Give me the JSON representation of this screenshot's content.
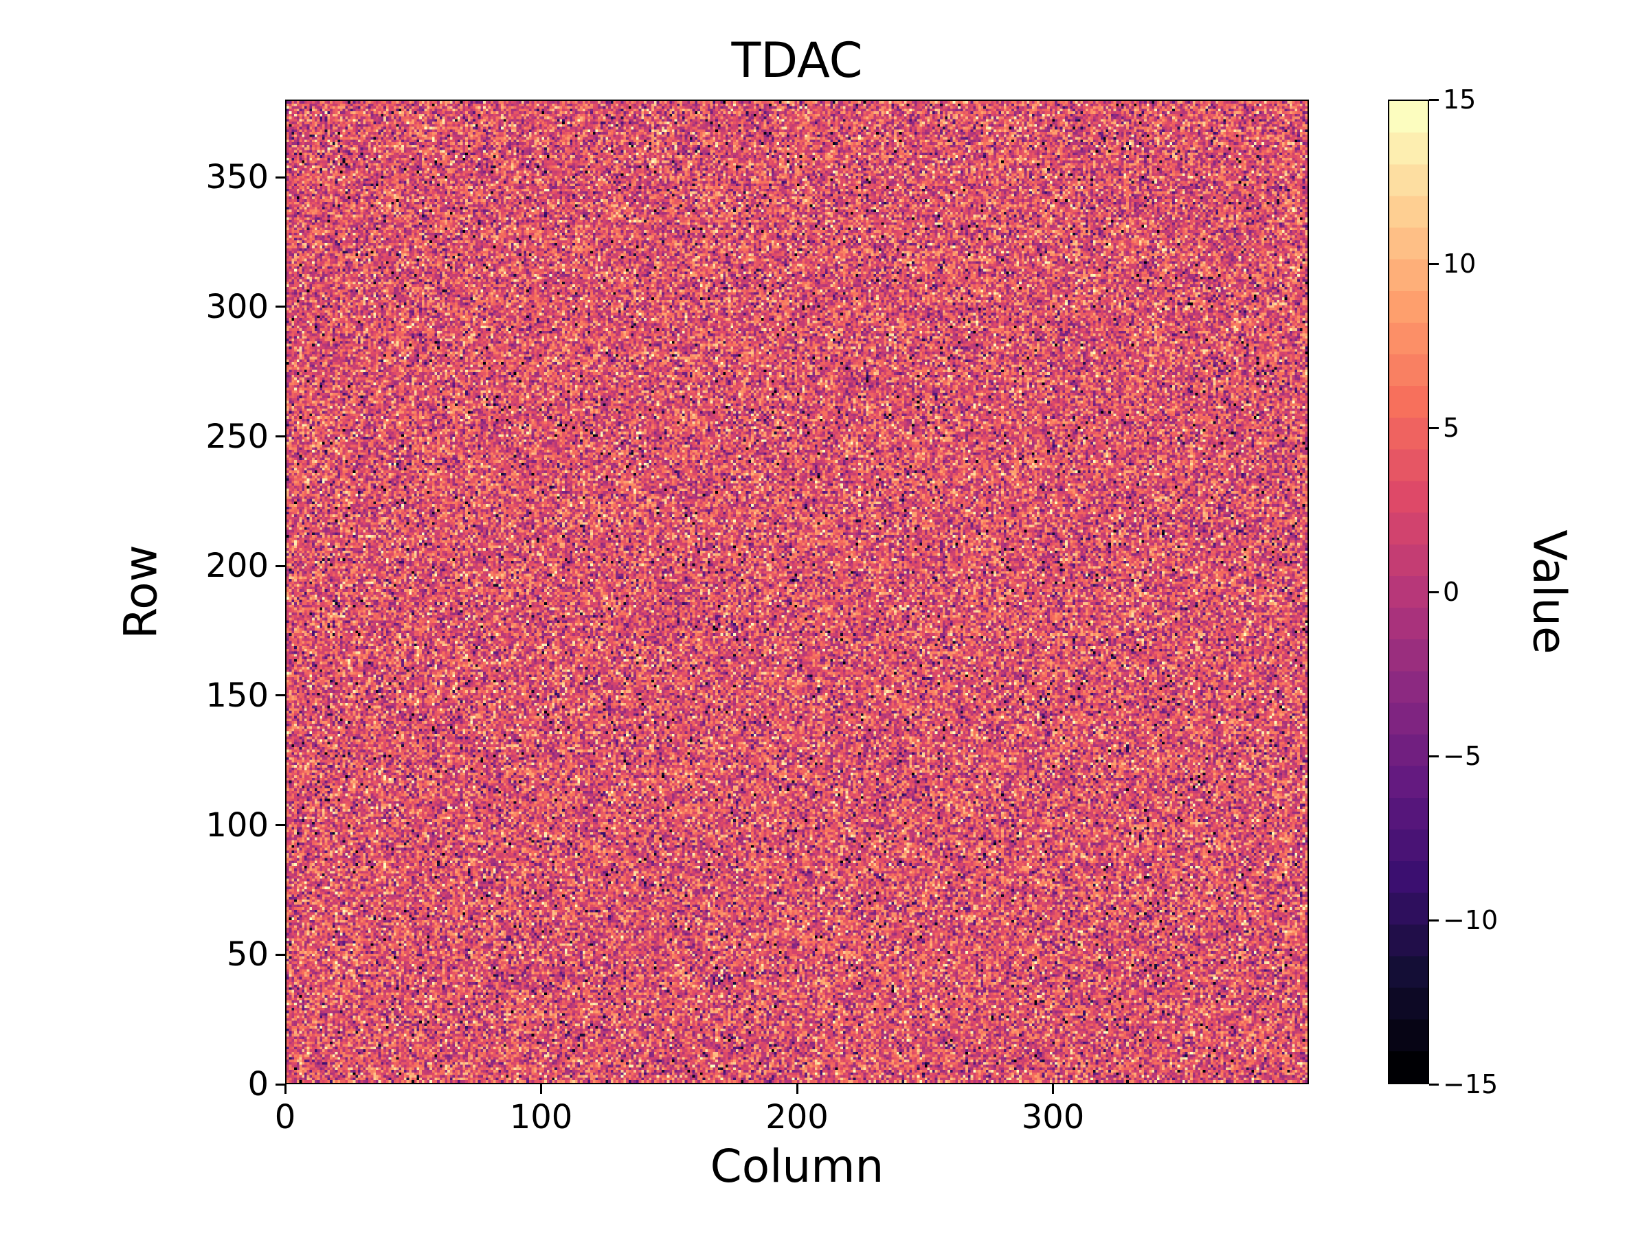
{
  "figure": {
    "background": "#ffffff",
    "text_color": "#000000"
  },
  "chart_data": {
    "type": "heatmap",
    "title": "TDAC",
    "xlabel": "Column",
    "ylabel": "Row",
    "x_range": [
      0,
      400
    ],
    "y_range": [
      0,
      380
    ],
    "x_ticks": [
      0,
      100,
      200,
      300
    ],
    "y_ticks": [
      0,
      50,
      100,
      150,
      200,
      250,
      300,
      350
    ],
    "grid": {
      "cols": 400,
      "rows": 380,
      "gridlines": false
    },
    "values_description": "per-pixel random integer TDAC tuning values; uniform speckle noise across the whole matrix, mostly pink/salmon mid-range values with scattered near-white highs and dark purple/black lows",
    "distribution_estimate": {
      "mean": 3.5,
      "std": 4.2,
      "outlier_fraction": 0.08,
      "min": -15,
      "max": 15,
      "seed": 1234567
    },
    "colorbar": {
      "label": "Value",
      "min": -15,
      "max": 15,
      "ticks": [
        15,
        10,
        5,
        0,
        -5,
        -10,
        -15
      ],
      "levels": 31,
      "position": "right"
    },
    "colormap": {
      "name": "magma",
      "stops": [
        [
          0.0,
          "#000004"
        ],
        [
          0.1,
          "#140e36"
        ],
        [
          0.2,
          "#3b0f70"
        ],
        [
          0.3,
          "#641a80"
        ],
        [
          0.4,
          "#8c2981"
        ],
        [
          0.5,
          "#b73779"
        ],
        [
          0.6,
          "#de4968"
        ],
        [
          0.7,
          "#f7705c"
        ],
        [
          0.8,
          "#fe9f6d"
        ],
        [
          0.9,
          "#fecf92"
        ],
        [
          1.0,
          "#fcfdbf"
        ]
      ]
    },
    "legend": null
  }
}
